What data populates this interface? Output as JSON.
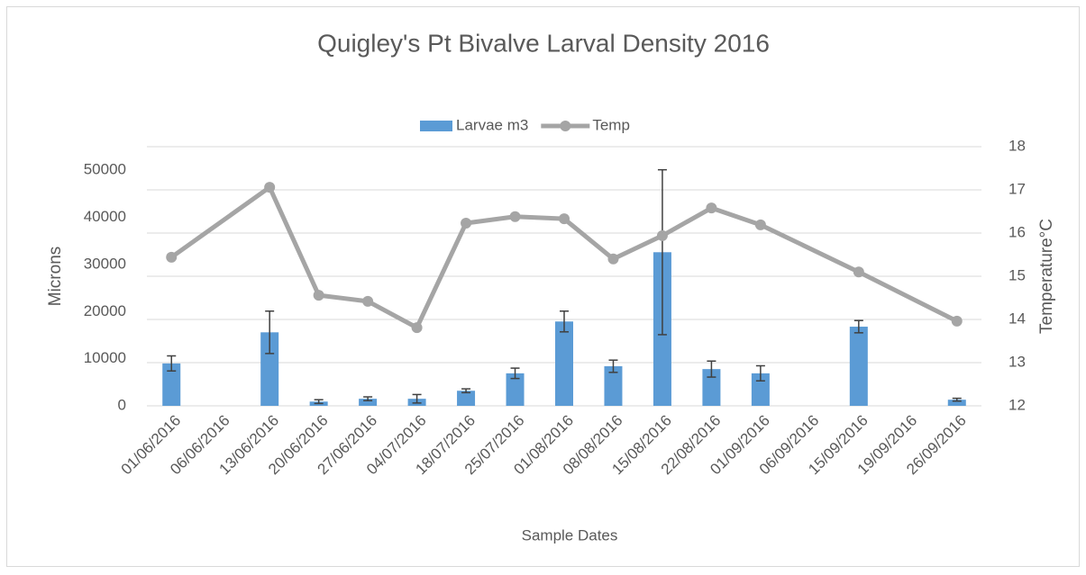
{
  "chart_data": {
    "type": "bar_line",
    "title": "Quigley's Pt Bivalve Larval Density 2016",
    "xlabel": "Sample Dates",
    "ylabel": "Microns",
    "y2label": "Temperature°C",
    "categories": [
      "01/06/2016",
      "06/06/2016",
      "13/06/2016",
      "20/06/2016",
      "27/06/2016",
      "04/07/2016",
      "18/07/2016",
      "25/07/2016",
      "01/08/2016",
      "08/08/2016",
      "15/08/2016",
      "22/08/2016",
      "01/09/2016",
      "06/09/2016",
      "15/09/2016",
      "19/09/2016",
      "26/09/2016"
    ],
    "series": [
      {
        "name": "Larvae m3",
        "type": "bar",
        "color": "#5b9bd5",
        "values": [
          9000,
          null,
          15600,
          900,
          1500,
          1500,
          3200,
          6900,
          17900,
          8400,
          32600,
          7800,
          6900,
          null,
          16800,
          null,
          1300
        ],
        "errors": [
          1600,
          null,
          4500,
          400,
          400,
          900,
          400,
          1100,
          2200,
          1300,
          17500,
          1700,
          1600,
          null,
          1300,
          null,
          300
        ]
      },
      {
        "name": "Temp",
        "type": "line",
        "axis": "y2",
        "color": "#a5a5a5",
        "connect_gaps": true,
        "values": [
          15.44,
          null,
          17.06,
          14.56,
          14.42,
          13.81,
          16.23,
          16.38,
          16.33,
          15.4,
          15.94,
          16.58,
          16.19,
          null,
          15.1,
          null,
          13.96
        ]
      }
    ],
    "ylim": [
      0,
      55000
    ],
    "yticks": [
      0,
      10000,
      20000,
      30000,
      40000,
      50000
    ],
    "y2lim": [
      12,
      18
    ],
    "y2ticks": [
      12,
      13,
      14,
      15,
      16,
      17,
      18
    ],
    "grid": true,
    "legend": "top"
  }
}
